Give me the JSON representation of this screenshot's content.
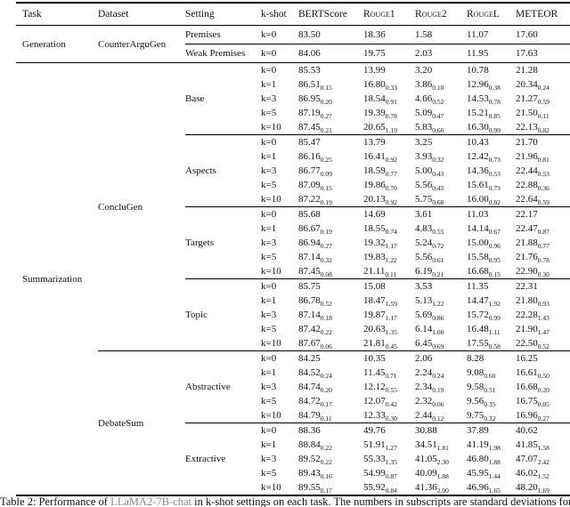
{
  "table": {
    "columns": [
      "Task",
      "Dataset",
      "Setting",
      "k-shot",
      "BERTScore",
      "Rouge1",
      "Rouge2",
      "RougeL",
      "METEOR"
    ],
    "groups": [
      {
        "task": "Generation",
        "datasets": [
          {
            "name": "CounterArguGen",
            "settings": [
              {
                "name": "Premises",
                "rows": [
                  {
                    "k": "k=0",
                    "scores": [
                      "83.50",
                      "18.36",
                      "1.58",
                      "11.07",
                      "17.60"
                    ]
                  }
                ]
              },
              {
                "name": "Weak Premises",
                "rows": [
                  {
                    "k": "k=0",
                    "scores": [
                      "84.06",
                      "19.75",
                      "2.03",
                      "11.95",
                      "17.63"
                    ]
                  }
                ]
              }
            ]
          }
        ]
      },
      {
        "task": "Summarization",
        "datasets": [
          {
            "name": "ConcluGen",
            "settings": [
              {
                "name": "Base",
                "rows": [
                  {
                    "k": "k=0",
                    "scores": [
                      "85.53",
                      "13.99",
                      "3.20",
                      "10.78",
                      "21.28"
                    ]
                  },
                  {
                    "k": "k=1",
                    "scores": [
                      "86.51_0.15",
                      "16.80_0.33",
                      "3.86_0.18",
                      "12.96_0.38",
                      "20.34_0.24"
                    ]
                  },
                  {
                    "k": "k=3",
                    "scores": [
                      "86.95_0.20",
                      "18.54_0.91",
                      "4.66_0.52",
                      "14.53_0.78",
                      "21.27_0.59"
                    ]
                  },
                  {
                    "k": "k=5",
                    "scores": [
                      "87.19_0.27",
                      "19.39_0.78",
                      "5.09_0.47",
                      "15.21_0.85",
                      "21.50_0.11"
                    ]
                  },
                  {
                    "k": "k=10",
                    "scores": [
                      "87.45_0.21",
                      "20.65_1.19",
                      "5.83_0.66",
                      "16.30_0.99",
                      "22.13_0.82"
                    ]
                  }
                ]
              },
              {
                "name": "Aspects",
                "rows": [
                  {
                    "k": "k=0",
                    "scores": [
                      "85.47",
                      "13.79",
                      "3.25",
                      "10.43",
                      "21.70"
                    ]
                  },
                  {
                    "k": "k=1",
                    "scores": [
                      "86.16_0.25",
                      "16.41_0.92",
                      "3.93_0.32",
                      "12.42_0.73",
                      "21.96_0.81"
                    ]
                  },
                  {
                    "k": "k=3",
                    "scores": [
                      "86.77_0.09",
                      "18.59_0.77",
                      "5.00_0.43",
                      "14.36_0.53",
                      "22.44_0.53"
                    ]
                  },
                  {
                    "k": "k=5",
                    "scores": [
                      "87.09_0.15",
                      "19.86_0.70",
                      "5.56_0.45",
                      "15.61_0.73",
                      "22.88_0.36"
                    ]
                  },
                  {
                    "k": "k=10",
                    "scores": [
                      "87.22_0.19",
                      "20.13_0.92",
                      "5.75_0.68",
                      "16.00_0.82",
                      "22.64_0.59"
                    ]
                  }
                ]
              },
              {
                "name": "Targets",
                "rows": [
                  {
                    "k": "k=0",
                    "scores": [
                      "85.68",
                      "14.69",
                      "3.61",
                      "11.03",
                      "22.17"
                    ]
                  },
                  {
                    "k": "k=1",
                    "scores": [
                      "86.67_0.19",
                      "18.55_0.74",
                      "4.83_0.55",
                      "14.14_0.67",
                      "22.47_0.87"
                    ]
                  },
                  {
                    "k": "k=3",
                    "scores": [
                      "86.94_0.27",
                      "19.32_1.17",
                      "5.24_0.72",
                      "15.00_0.96",
                      "21.88_0.77"
                    ]
                  },
                  {
                    "k": "k=5",
                    "scores": [
                      "87.14_0.32",
                      "19.83_1.22",
                      "5.56_0.61",
                      "15.58_0.95",
                      "21.76_0.78"
                    ]
                  },
                  {
                    "k": "k=10",
                    "scores": [
                      "87.45_0.08",
                      "21.11_0.11",
                      "6.19_0.21",
                      "16.68_0.15",
                      "22.90_0.30"
                    ]
                  }
                ]
              },
              {
                "name": "Topic",
                "rows": [
                  {
                    "k": "k=0",
                    "scores": [
                      "85.75",
                      "15.08",
                      "3.53",
                      "11.35",
                      "22.31"
                    ]
                  },
                  {
                    "k": "k=1",
                    "scores": [
                      "86.78_0.52",
                      "18.47_1.59",
                      "5.13_1.22",
                      "14.47_1.92",
                      "21.80_0.93"
                    ]
                  },
                  {
                    "k": "k=3",
                    "scores": [
                      "87.14_0.18",
                      "19.87_1.17",
                      "5.69_0.86",
                      "15.72_0.99",
                      "22.28_1.43"
                    ]
                  },
                  {
                    "k": "k=5",
                    "scores": [
                      "87.42_0.22",
                      "20.63_1.35",
                      "6.14_1.00",
                      "16.48_1.11",
                      "21.90_1.47"
                    ]
                  },
                  {
                    "k": "k=10",
                    "scores": [
                      "87.67_0.06",
                      "21.81_0.45",
                      "6.45_0.69",
                      "17.55_0.58",
                      "22.50_0.52"
                    ]
                  }
                ]
              }
            ]
          },
          {
            "name": "DebateSum",
            "settings": [
              {
                "name": "Abstractive",
                "rows": [
                  {
                    "k": "k=0",
                    "scores": [
                      "84.25",
                      "10.35",
                      "2.06",
                      "8.28",
                      "16.25"
                    ]
                  },
                  {
                    "k": "k=1",
                    "scores": [
                      "84.52_0.24",
                      "11.45_0.71",
                      "2.24_0.24",
                      "9.08_0.60",
                      "16.61_0.50"
                    ]
                  },
                  {
                    "k": "k=3",
                    "scores": [
                      "84.74_0.20",
                      "12.12_0.55",
                      "2.34_0.19",
                      "9.58_0.51",
                      "16.68_0.20"
                    ]
                  },
                  {
                    "k": "k=5",
                    "scores": [
                      "84.72_0.17",
                      "12.07_0.42",
                      "2.32_0.06",
                      "9.56_0.35",
                      "16.75_0.05"
                    ]
                  },
                  {
                    "k": "k=10",
                    "scores": [
                      "84.79_0.11",
                      "12.33_0.30",
                      "2.44_0.12",
                      "9.75_0.32",
                      "16.96_0.27"
                    ]
                  }
                ]
              },
              {
                "name": "Extractive",
                "rows": [
                  {
                    "k": "k=0",
                    "scores": [
                      "88.36",
                      "49.76",
                      "30.88",
                      "37.89",
                      "40.62"
                    ]
                  },
                  {
                    "k": "k=1",
                    "scores": [
                      "88.84_0.22",
                      "51.91_1.27",
                      "34.51_1.81",
                      "41.19_1.98",
                      "41.85_1.58"
                    ]
                  },
                  {
                    "k": "k=3",
                    "scores": [
                      "89.52_0.22",
                      "55.33_1.35",
                      "41.05_2.30",
                      "46.80_1.88",
                      "47.07_2.42"
                    ]
                  },
                  {
                    "k": "k=5",
                    "scores": [
                      "89.43_0.16",
                      "54.99_0.87",
                      "40.09_1.88",
                      "45.95_1.44",
                      "46.02_1.52"
                    ]
                  },
                  {
                    "k": "k=10",
                    "scores": [
                      "89.55_0.17",
                      "55.92_0.84",
                      "41.36_2.00",
                      "46.96_1.65",
                      "48.20_1.69"
                    ]
                  }
                ]
              }
            ]
          }
        ]
      }
    ]
  },
  "caption": {
    "prefix": "Table 2: Performance of ",
    "model": "LLaMA2-7B-chat",
    "rest": " in k-shot settings on each task. The numbers in subscripts are standard deviations for the"
  }
}
